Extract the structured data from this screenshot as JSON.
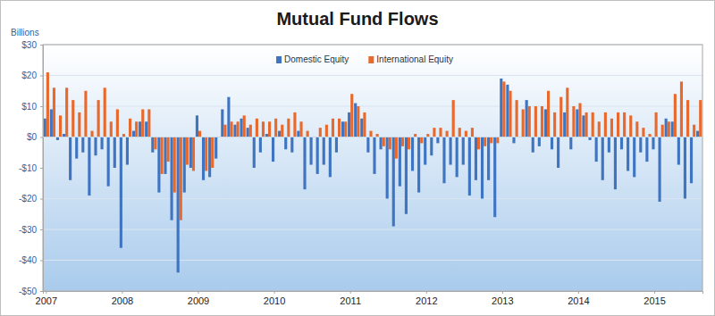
{
  "chart_data": {
    "type": "bar",
    "title": "Mutual Fund Flows",
    "y_label": "Billions",
    "categories": [
      "2007",
      null,
      null,
      null,
      null,
      null,
      null,
      null,
      null,
      null,
      null,
      null,
      "2008",
      null,
      null,
      null,
      null,
      null,
      null,
      null,
      null,
      null,
      null,
      null,
      "2009",
      null,
      null,
      null,
      null,
      null,
      null,
      null,
      null,
      null,
      null,
      null,
      "2010",
      null,
      null,
      null,
      null,
      null,
      null,
      null,
      null,
      null,
      null,
      null,
      "2011",
      null,
      null,
      null,
      null,
      null,
      null,
      null,
      null,
      null,
      null,
      null,
      "2012",
      null,
      null,
      null,
      null,
      null,
      null,
      null,
      null,
      null,
      null,
      null,
      "2013",
      null,
      null,
      null,
      null,
      null,
      null,
      null,
      null,
      null,
      null,
      null,
      "2014",
      null,
      null,
      null,
      null,
      null,
      null,
      null,
      null,
      null,
      null,
      null,
      "2015",
      null,
      null,
      null,
      null,
      null,
      null,
      null
    ],
    "series": [
      {
        "name": "Domestic Equity",
        "color": "#3f74c0",
        "values": [
          6,
          9,
          -1,
          1,
          -14,
          -7,
          -5,
          -19,
          -6,
          -4,
          -16,
          -10,
          -36,
          -9,
          2,
          5,
          5,
          -5,
          -18,
          -12,
          -27,
          -44,
          -18,
          -10,
          7,
          -14,
          -13,
          -7,
          9,
          13,
          4,
          6,
          3,
          -10,
          -5,
          1,
          -8,
          2,
          -4,
          -5,
          2,
          -17,
          -9,
          -12,
          -9,
          -13,
          -5,
          5,
          8,
          11,
          6,
          -5,
          -12,
          -4,
          -20,
          -29,
          -16,
          -25,
          -11,
          -18,
          -9,
          -6,
          -2,
          -15,
          -9,
          -13,
          -9,
          -19,
          -14,
          -20,
          -14,
          -26,
          19,
          17,
          -2,
          0,
          12,
          -5,
          -3,
          9,
          -4,
          -10,
          8,
          -4,
          9,
          7,
          -1,
          -8,
          -14,
          -5,
          -17,
          -4,
          -11,
          -13,
          -5,
          -8,
          -4,
          -21,
          6,
          5,
          -9,
          -20,
          -15,
          2
        ]
      },
      {
        "name": "International Equity",
        "color": "#e8692c",
        "values": [
          21,
          16,
          7,
          16,
          12,
          8,
          15,
          2,
          12,
          16,
          5,
          9,
          1,
          6,
          5,
          9,
          9,
          -4,
          -12,
          -8,
          -18,
          -27,
          -9,
          -11,
          2,
          -11,
          -10,
          0,
          4,
          5,
          5,
          7,
          4,
          6,
          5,
          5,
          6,
          4,
          6,
          8,
          5,
          2,
          0,
          3,
          4,
          6,
          6,
          5,
          14,
          10,
          8,
          2,
          1,
          -3,
          -4,
          -7,
          -3,
          -4,
          1,
          -2,
          1,
          3,
          3,
          2,
          12,
          3,
          2,
          3,
          -4,
          -3,
          -2,
          -2,
          18,
          15,
          12,
          9,
          10,
          10,
          10,
          15,
          8,
          13,
          16,
          10,
          11,
          8,
          8,
          5,
          8,
          6,
          8,
          8,
          7,
          5,
          3,
          1,
          8,
          4,
          5,
          14,
          18,
          12,
          4,
          12
        ]
      }
    ],
    "ylim": [
      -50,
      30
    ],
    "yticks": [
      {
        "value": -50,
        "label": "-$50"
      },
      {
        "value": -40,
        "label": "-$40"
      },
      {
        "value": -30,
        "label": "-$30"
      },
      {
        "value": -20,
        "label": "-$20"
      },
      {
        "value": -10,
        "label": "-$10"
      },
      {
        "value": 0,
        "label": "$0"
      },
      {
        "value": 10,
        "label": "$10"
      },
      {
        "value": 20,
        "label": "$20"
      },
      {
        "value": 30,
        "label": "$30"
      }
    ],
    "grid": true,
    "legend": "top"
  }
}
